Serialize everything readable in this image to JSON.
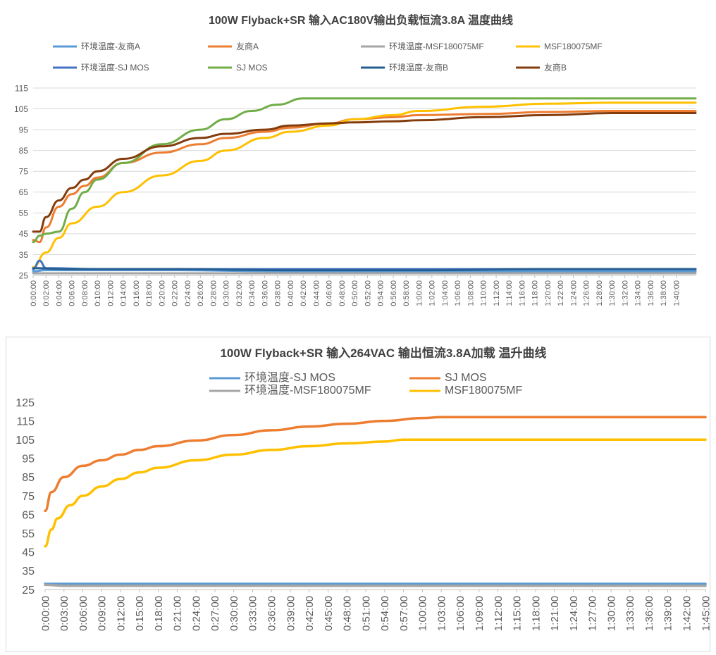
{
  "charts": [
    {
      "title": "100W Flyback+SR 输入AC180V输出负载恒流3.8A 温度曲线",
      "chart_data": {
        "type": "line",
        "title": "100W Flyback+SR 输入AC180V输出负载恒流3.8A 温度曲线",
        "xlabel": "",
        "ylabel": "",
        "ylim": [
          25,
          115
        ],
        "yticks": [
          25,
          35,
          45,
          55,
          65,
          75,
          85,
          95,
          105,
          115
        ],
        "x_range_minutes": [
          0,
          103
        ],
        "x_tick_step_minutes": 2,
        "x_ticks": [
          "0:00:00",
          "0:02:00",
          "0:04:00",
          "0:06:00",
          "0:08:00",
          "0:10:00",
          "0:12:00",
          "0:14:00",
          "0:16:00",
          "0:18:00",
          "0:20:00",
          "0:22:00",
          "0:24:00",
          "0:26:00",
          "0:28:00",
          "0:30:00",
          "0:32:00",
          "0:34:00",
          "0:36:00",
          "0:38:00",
          "0:40:00",
          "0:42:00",
          "0:44:00",
          "0:46:00",
          "0:48:00",
          "0:50:00",
          "0:52:00",
          "0:54:00",
          "0:56:00",
          "0:58:00",
          "1:00:00",
          "1:02:00",
          "1:04:00",
          "1:06:00",
          "1:08:00",
          "1:10:00",
          "1:12:00",
          "1:14:00",
          "1:16:00",
          "1:18:00",
          "1:20:00",
          "1:22:00",
          "1:24:00",
          "1:26:00",
          "1:28:00",
          "1:30:00",
          "1:32:00",
          "1:34:00",
          "1:36:00",
          "1:38:00",
          "1:40:00"
        ],
        "grid": "horizontal",
        "legend": "top",
        "series": [
          {
            "name": "环境温度-友商A",
            "color": "#5b9bd5",
            "x": [
              "0:00:00",
              "0:02:00",
              "0:10:00",
              "0:20:00",
              "0:40:00",
              "1:00:00",
              "1:20:00",
              "1:43:00"
            ],
            "y": [
              27,
              27.5,
              27.5,
              27.5,
              27,
              27,
              27,
              27
            ]
          },
          {
            "name": "友商A",
            "color": "#ed7d31",
            "x": [
              "0:00:00",
              "0:01:00",
              "0:02:00",
              "0:04:00",
              "0:06:00",
              "0:08:00",
              "0:10:00",
              "0:14:00",
              "0:20:00",
              "0:26:00",
              "0:30:00",
              "0:36:00",
              "0:40:00",
              "0:46:00",
              "0:50:00",
              "0:56:00",
              "1:00:00",
              "1:10:00",
              "1:20:00",
              "1:30:00",
              "1:43:00"
            ],
            "y": [
              42,
              41,
              48,
              58,
              64,
              68,
              72,
              79,
              84,
              88,
              91,
              94,
              96,
              98,
              100,
              101,
              102,
              102.5,
              103.5,
              104,
              104
            ]
          },
          {
            "name": "环境温度-MSF180075MF",
            "color": "#a5a5a5",
            "x": [
              "0:00:00",
              "0:05:00",
              "0:20:00",
              "0:40:00",
              "1:00:00",
              "1:20:00",
              "1:43:00"
            ],
            "y": [
              26,
              26,
              26,
              26,
              26,
              26,
              26
            ]
          },
          {
            "name": "MSF180075MF",
            "color": "#ffc000",
            "x": [
              "0:00:00",
              "0:02:00",
              "0:04:00",
              "0:06:00",
              "0:10:00",
              "0:14:00",
              "0:20:00",
              "0:26:00",
              "0:30:00",
              "0:36:00",
              "0:40:00",
              "0:46:00",
              "0:50:00",
              "0:56:00",
              "1:00:00",
              "1:10:00",
              "1:20:00",
              "1:30:00",
              "1:43:00"
            ],
            "y": [
              29,
              36,
              43,
              50,
              58,
              65,
              73,
              80,
              85,
              91,
              94,
              97,
              100,
              102,
              104,
              106,
              107.5,
              108,
              108
            ]
          },
          {
            "name": "环境温度-SJ MOS",
            "color": "#4472c4",
            "x": [
              "0:00:00",
              "0:01:00",
              "0:02:00",
              "0:10:00",
              "0:20:00",
              "0:40:00",
              "1:00:00",
              "1:20:00",
              "1:43:00"
            ],
            "y": [
              28,
              32,
              28.5,
              28,
              28,
              28,
              28,
              28,
              28
            ]
          },
          {
            "name": "SJ MOS",
            "color": "#70ad47",
            "x": [
              "0:00:00",
              "0:01:00",
              "0:02:00",
              "0:04:00",
              "0:06:00",
              "0:08:00",
              "0:10:00",
              "0:14:00",
              "0:20:00",
              "0:26:00",
              "0:30:00",
              "0:34:00",
              "0:38:00",
              "0:42:00",
              "0:46:00",
              "0:50:00",
              "1:00:00",
              "1:20:00",
              "1:43:00"
            ],
            "y": [
              41,
              44,
              45,
              46,
              57,
              65,
              71,
              79,
              88,
              95,
              100,
              104,
              107,
              110,
              110,
              110,
              110,
              110,
              110
            ]
          },
          {
            "name": "环境温度-友商B",
            "color": "#255e91",
            "x": [
              "0:00:00",
              "0:05:00",
              "0:20:00",
              "0:40:00",
              "1:00:00",
              "1:20:00",
              "1:43:00"
            ],
            "y": [
              28.5,
              28,
              28,
              27.5,
              27.5,
              28,
              28
            ]
          },
          {
            "name": "友商B",
            "color": "#843c0c",
            "x": [
              "0:00:00",
              "0:01:00",
              "0:02:00",
              "0:04:00",
              "0:06:00",
              "0:08:00",
              "0:10:00",
              "0:14:00",
              "0:20:00",
              "0:26:00",
              "0:30:00",
              "0:36:00",
              "0:40:00",
              "0:46:00",
              "0:50:00",
              "0:56:00",
              "1:00:00",
              "1:10:00",
              "1:20:00",
              "1:30:00",
              "1:43:00"
            ],
            "y": [
              46,
              46,
              53,
              61,
              67,
              71,
              75,
              81,
              87,
              91,
              93,
              95,
              97,
              98,
              98.5,
              99,
              99.5,
              101,
              102,
              103,
              103
            ]
          }
        ]
      }
    },
    {
      "title": "100W Flyback+SR 输入264VAC 输出恒流3.8A加载 温升曲线",
      "chart_data": {
        "type": "line",
        "title": "100W Flyback+SR 输入264VAC 输出恒流3.8A加载 温升曲线",
        "xlabel": "",
        "ylabel": "",
        "ylim": [
          25,
          125
        ],
        "yticks": [
          25,
          35,
          45,
          55,
          65,
          75,
          85,
          95,
          105,
          115,
          125
        ],
        "x_range_minutes": [
          0,
          105
        ],
        "x_tick_step_minutes": 3,
        "x_ticks": [
          "0:00:00",
          "0:03:00",
          "0:06:00",
          "0:09:00",
          "0:12:00",
          "0:15:00",
          "0:18:00",
          "0:21:00",
          "0:24:00",
          "0:27:00",
          "0:30:00",
          "0:33:00",
          "0:36:00",
          "0:39:00",
          "0:42:00",
          "0:45:00",
          "0:48:00",
          "0:51:00",
          "0:54:00",
          "0:57:00",
          "1:00:00",
          "1:03:00",
          "1:06:00",
          "1:09:00",
          "1:12:00",
          "1:15:00",
          "1:18:00",
          "1:21:00",
          "1:24:00",
          "1:27:00",
          "1:30:00",
          "1:33:00",
          "1:36:00",
          "1:39:00",
          "1:42:00",
          "1:45:00"
        ],
        "grid": "none",
        "legend": "top",
        "series": [
          {
            "name": "环境温度-SJ MOS",
            "color": "#5b9bd5",
            "x": [
              "0:00:00",
              "0:03:00",
              "0:10:00",
              "0:30:00",
              "0:60:00",
              "1:30:00",
              "1:45:00"
            ],
            "y": [
              28,
              28,
              28,
              28,
              28,
              28,
              28
            ]
          },
          {
            "name": "SJ MOS",
            "color": "#ed7d31",
            "x": [
              "0:00:00",
              "0:01:00",
              "0:03:00",
              "0:06:00",
              "0:09:00",
              "0:12:00",
              "0:15:00",
              "0:18:00",
              "0:24:00",
              "0:30:00",
              "0:36:00",
              "0:42:00",
              "0:48:00",
              "0:54:00",
              "1:00:00",
              "1:03:00",
              "1:15:00",
              "1:30:00",
              "1:45:00"
            ],
            "y": [
              67,
              77,
              85,
              91,
              94,
              97,
              99.5,
              101.5,
              104.5,
              107.5,
              110,
              112,
              113.5,
              115,
              116.5,
              117,
              117,
              117,
              117
            ]
          },
          {
            "name": "环境温度-MSF180075MF",
            "color": "#a5a5a5",
            "x": [
              "0:00:00",
              "0:03:00",
              "0:10:00",
              "0:30:00",
              "1:00:00",
              "1:30:00",
              "1:45:00"
            ],
            "y": [
              27.5,
              27,
              27,
              27,
              27,
              27,
              27
            ]
          },
          {
            "name": "MSF180075MF",
            "color": "#ffc000",
            "x": [
              "0:00:00",
              "0:01:00",
              "0:02:00",
              "0:04:00",
              "0:06:00",
              "0:09:00",
              "0:12:00",
              "0:15:00",
              "0:18:00",
              "0:24:00",
              "0:30:00",
              "0:36:00",
              "0:42:00",
              "0:48:00",
              "0:54:00",
              "0:57:00",
              "1:00:00",
              "1:15:00",
              "1:30:00",
              "1:45:00"
            ],
            "y": [
              48,
              57,
              63,
              70,
              75,
              80,
              84,
              87.5,
              90,
              94,
              97,
              99.5,
              101.5,
              103,
              104,
              105,
              105,
              105,
              105,
              105
            ]
          }
        ]
      }
    }
  ]
}
